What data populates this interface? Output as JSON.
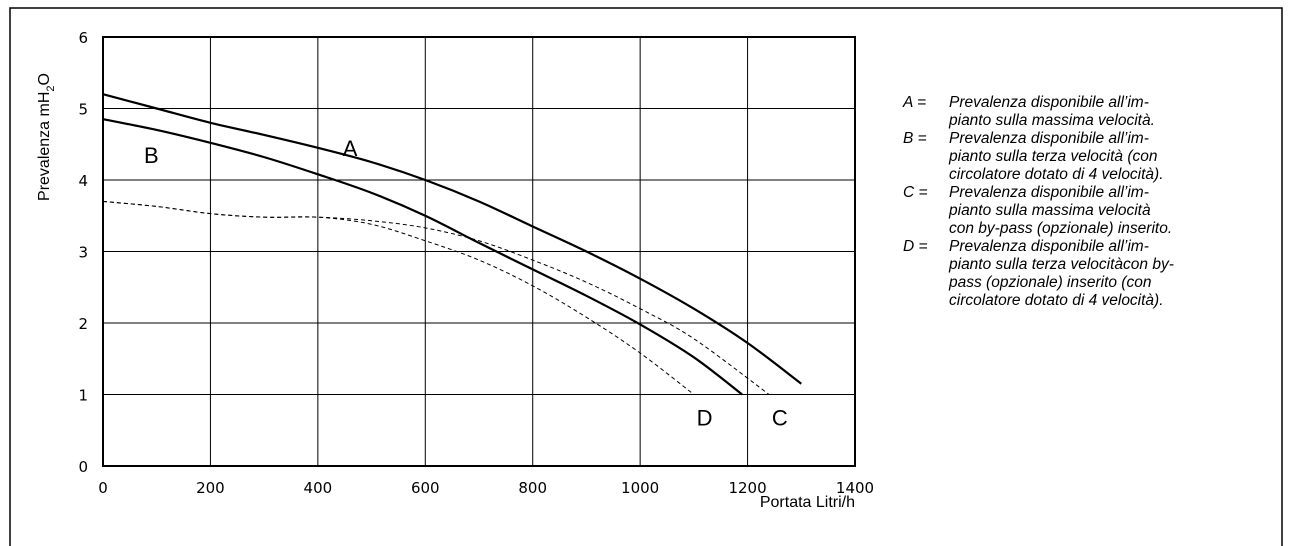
{
  "chart_data": {
    "type": "line",
    "xlabel": "Portata Litri/h",
    "ylabel": {
      "main": "Prevalenza mH",
      "sub": "2",
      "tail": "O"
    },
    "xlim": [
      0,
      1400
    ],
    "ylim": [
      0,
      6
    ],
    "x_ticks": [
      "0",
      "200",
      "400",
      "600",
      "800",
      "1000",
      "1200",
      "1400"
    ],
    "y_ticks": [
      "0",
      "1",
      "2",
      "3",
      "4",
      "5",
      "6"
    ],
    "grid": true,
    "series": [
      {
        "name": "A",
        "style": "solid",
        "label_at": [
          460,
          4.45
        ],
        "x": [
          0,
          100,
          200,
          300,
          400,
          500,
          600,
          700,
          800,
          900,
          1000,
          1100,
          1200,
          1300
        ],
        "y": [
          5.2,
          5.0,
          4.8,
          4.63,
          4.45,
          4.25,
          4.0,
          3.7,
          3.35,
          3.0,
          2.62,
          2.2,
          1.72,
          1.15
        ]
      },
      {
        "name": "B",
        "style": "solid",
        "label_at": [
          90,
          4.35
        ],
        "x": [
          0,
          100,
          200,
          300,
          400,
          500,
          600,
          700,
          800,
          900,
          1000,
          1100,
          1190
        ],
        "y": [
          4.85,
          4.7,
          4.52,
          4.32,
          4.08,
          3.82,
          3.5,
          3.12,
          2.75,
          2.38,
          1.98,
          1.52,
          1.0
        ]
      },
      {
        "name": "C",
        "style": "dashed",
        "label_at": [
          1260,
          0.68
        ],
        "x": [
          0,
          100,
          200,
          300,
          400,
          500,
          600,
          700,
          800,
          900,
          1000,
          1100,
          1240
        ],
        "y": [
          3.7,
          3.63,
          3.53,
          3.48,
          3.48,
          3.43,
          3.33,
          3.15,
          2.88,
          2.57,
          2.2,
          1.78,
          1.0
        ]
      },
      {
        "name": "D",
        "style": "dashed",
        "label_at": [
          1120,
          0.68
        ],
        "x": [
          0,
          100,
          200,
          300,
          400,
          500,
          600,
          700,
          800,
          900,
          1000,
          1100
        ],
        "y": [
          3.7,
          3.63,
          3.53,
          3.48,
          3.48,
          3.38,
          3.15,
          2.88,
          2.52,
          2.08,
          1.58,
          1.0
        ]
      }
    ]
  },
  "legend": [
    {
      "key": "A =",
      "lines": [
        "Prevalenza disponibile all’im-",
        "pianto sulla massima velocità."
      ]
    },
    {
      "key": "B =",
      "lines": [
        "Prevalenza disponibile all’im-",
        "pianto sulla terza velocità (con",
        "circolatore dotato di 4 velocità)."
      ]
    },
    {
      "key": "C =",
      "lines": [
        "Prevalenza disponibile all’im-",
        "pianto sulla massima velocità",
        "con by-pass (opzionale) inserito."
      ]
    },
    {
      "key": "D =",
      "lines": [
        "Prevalenza disponibile all’im-",
        "pianto sulla terza velocitàcon by-",
        "pass (opzionale) inserito (con",
        "circolatore dotato di 4 velocità)."
      ]
    }
  ]
}
